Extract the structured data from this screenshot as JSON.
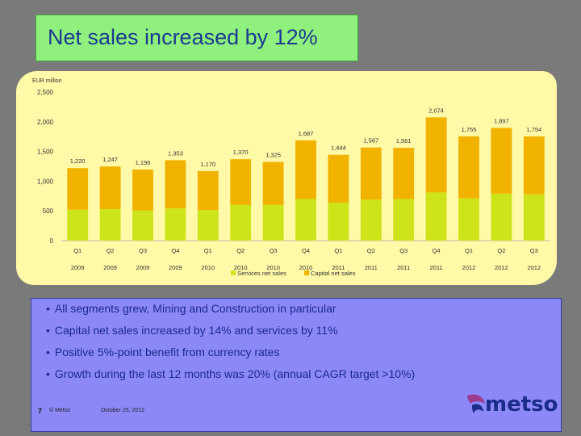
{
  "title": "Net sales increased by 12%",
  "bullets": [
    "All segments grew, Mining and Construction in particular",
    "Capital net sales increased by 14% and services by 11%",
    "Positive 5%-point benefit from currency rates",
    "Growth during the last 12 months was 20% (annual CAGR target >10%)"
  ],
  "footer": {
    "page": "7",
    "copyright": "© Metso",
    "date": "October 25, 2012"
  },
  "logo_text": "metso",
  "colors": {
    "services": "#cde31a",
    "capital": "#f1b300",
    "title_bg": "#8ff07e",
    "chart_bg": "#fff9a8",
    "bullets_bg": "#8c88f7",
    "text_blue": "#1b2b8a",
    "logo_purple": "#9b3a8f"
  },
  "chart_data": {
    "type": "bar",
    "stacked": true,
    "unit_label": "EUR million",
    "categories": [
      {
        "q": "Q1",
        "y": "2009"
      },
      {
        "q": "Q2",
        "y": "2009"
      },
      {
        "q": "Q3",
        "y": "2009"
      },
      {
        "q": "Q4",
        "y": "2009"
      },
      {
        "q": "Q1",
        "y": "2010"
      },
      {
        "q": "Q2",
        "y": "2010"
      },
      {
        "q": "Q3",
        "y": "2010"
      },
      {
        "q": "Q4",
        "y": "2010"
      },
      {
        "q": "Q1",
        "y": "2011"
      },
      {
        "q": "Q2",
        "y": "2011"
      },
      {
        "q": "Q3",
        "y": "2011"
      },
      {
        "q": "Q4",
        "y": "2011"
      },
      {
        "q": "Q1",
        "y": "2012"
      },
      {
        "q": "Q2",
        "y": "2012"
      },
      {
        "q": "Q3",
        "y": "2012"
      }
    ],
    "totals": [
      1220,
      1247,
      1196,
      1353,
      1170,
      1370,
      1325,
      1687,
      1444,
      1567,
      1561,
      2074,
      1755,
      1897,
      1754
    ],
    "series": [
      {
        "name": "Services net sales",
        "values": [
          520,
          530,
          510,
          540,
          515,
          600,
          600,
          700,
          640,
          690,
          700,
          810,
          710,
          790,
          780
        ]
      },
      {
        "name": "Capital net sales",
        "values": [
          700,
          717,
          686,
          813,
          655,
          770,
          725,
          987,
          804,
          877,
          861,
          1264,
          1045,
          1107,
          974
        ]
      }
    ],
    "yticks": [
      "0",
      "500",
      "1,000",
      "1,500",
      "2,000",
      "2,500"
    ],
    "ylim": [
      0,
      2500
    ],
    "grid": false,
    "legend": "bottom"
  }
}
